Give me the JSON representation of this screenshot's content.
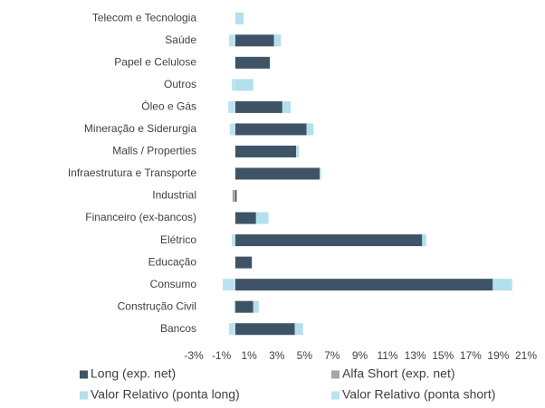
{
  "chart_data": {
    "type": "hbar-stacked",
    "categories": [
      "Telecom e Tecnologia",
      "Saúde",
      "Papel e Celulose",
      "Outros",
      "Óleo e Gás",
      "Mineração e Siderurgia",
      "Malls / Properties",
      "Infraestrutura e Transporte",
      "Industrial",
      "Financeiro (ex-bancos)",
      "Elétrico",
      "Educação",
      "Consumo",
      "Construção Civil",
      "Bancos"
    ],
    "series": [
      {
        "name": "Long (exp. net)",
        "color": "#3e5466",
        "values": [
          0,
          2.8,
          2.5,
          0,
          3.4,
          5.15,
          4.4,
          6.1,
          0.1,
          1.5,
          13.5,
          1.2,
          18.6,
          1.3,
          4.3
        ]
      },
      {
        "name": "Alfa Short (exp. net)",
        "color": "#a5a5a5",
        "values": [
          0,
          0,
          0,
          0,
          0,
          0,
          0,
          0,
          -0.2,
          0,
          0,
          0,
          0,
          0,
          0
        ]
      },
      {
        "name": "Valor Relativo (ponta long)",
        "color": "#b4dfec",
        "values": [
          0.6,
          0.5,
          0,
          1.3,
          0.6,
          0.5,
          0.2,
          0.1,
          0,
          0.9,
          0.3,
          0,
          1.4,
          0.4,
          0.6
        ]
      },
      {
        "name": "Valor Relativo (ponta short)",
        "color": "#bde3ef",
        "values": [
          0,
          -0.45,
          0,
          -0.25,
          -0.5,
          -0.4,
          0,
          0,
          0,
          0,
          -0.25,
          0,
          -0.9,
          -0.1,
          -0.45
        ]
      }
    ],
    "xlim": [
      -3,
      21
    ],
    "xticks": [
      {
        "value": -3,
        "label": "-3%"
      },
      {
        "value": -1,
        "label": "-1%"
      },
      {
        "value": 1,
        "label": "1%"
      },
      {
        "value": 3,
        "label": "3%"
      },
      {
        "value": 5,
        "label": "5%"
      },
      {
        "value": 7,
        "label": "7%"
      },
      {
        "value": 9,
        "label": "9%"
      },
      {
        "value": 11,
        "label": "11%"
      },
      {
        "value": 13,
        "label": "13%"
      },
      {
        "value": 15,
        "label": "15%"
      },
      {
        "value": 17,
        "label": "17%"
      },
      {
        "value": 19,
        "label": "19%"
      },
      {
        "value": 21,
        "label": "21%"
      }
    ],
    "legend": "bottom"
  }
}
